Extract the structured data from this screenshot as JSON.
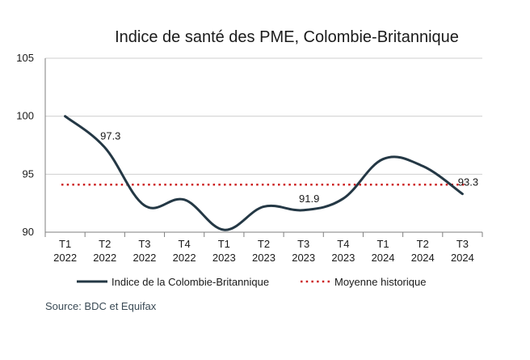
{
  "chart_data": {
    "type": "line",
    "title": "Indice de santé des PME, Colombie-Britannique",
    "xlabel": "",
    "ylabel": "",
    "ylim": [
      90,
      105
    ],
    "yticks": [
      "90",
      "95",
      "100",
      "105"
    ],
    "grid": "horizontal",
    "categories": [
      [
        "T1",
        "2022"
      ],
      [
        "T2",
        "2022"
      ],
      [
        "T3",
        "2022"
      ],
      [
        "T4",
        "2022"
      ],
      [
        "T1",
        "2023"
      ],
      [
        "T2",
        "2023"
      ],
      [
        "T3",
        "2023"
      ],
      [
        "T4",
        "2023"
      ],
      [
        "T1",
        "2024"
      ],
      [
        "T2",
        "2024"
      ],
      [
        "T3",
        "2024"
      ]
    ],
    "series": [
      {
        "name": "Indice de la Colombie-Britannique",
        "color": "#243845",
        "style": "solid",
        "values": [
          100,
          97.3,
          92.3,
          92.8,
          90.2,
          92.2,
          91.9,
          92.9,
          96.3,
          95.7,
          93.3
        ],
        "labels": [
          null,
          "97.3",
          null,
          null,
          null,
          null,
          "91.9",
          null,
          null,
          null,
          "93.3"
        ]
      },
      {
        "name": "Moyenne historique",
        "color": "#cc1f1f",
        "style": "dotted",
        "values": [
          94.1,
          94.1,
          94.1,
          94.1,
          94.1,
          94.1,
          94.1,
          94.1,
          94.1,
          94.1,
          94.1
        ]
      }
    ],
    "legend_position": "bottom",
    "source": "Source: BDC et Equifax"
  }
}
